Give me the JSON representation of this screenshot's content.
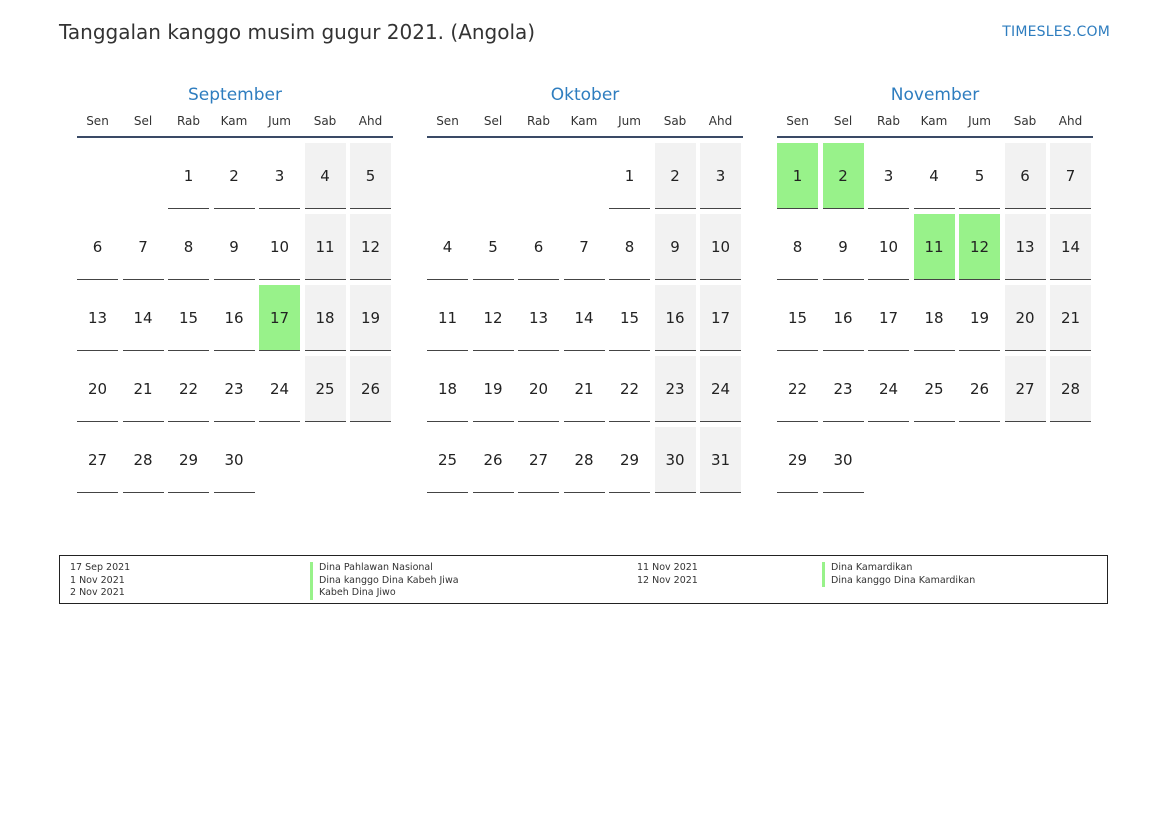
{
  "title": "Tanggalan kanggo musim gugur 2021. (Angola)",
  "site": "TIMESLES.COM",
  "holiday_color": "#98f28a",
  "weekend_color": "#f2f2f2",
  "accent_color": "#2e7dbf",
  "weekdays": [
    "Sen",
    "Sel",
    "Rab",
    "Kam",
    "Jum",
    "Sab",
    "Ahd"
  ],
  "months": [
    {
      "name": "September",
      "offset": 2,
      "days": 30,
      "holidays": [
        17
      ]
    },
    {
      "name": "Oktober",
      "offset": 4,
      "days": 31,
      "holidays": []
    },
    {
      "name": "November",
      "offset": 0,
      "days": 30,
      "holidays": [
        1,
        2,
        11,
        12
      ]
    }
  ],
  "legend": {
    "left": [
      {
        "date": "17 Sep 2021",
        "name": "Dina Pahlawan Nasional"
      },
      {
        "date": "1 Nov 2021",
        "name": "Dina kanggo Dina Kabeh Jiwa"
      },
      {
        "date": "2 Nov 2021",
        "name": "Kabeh Dina Jiwo"
      }
    ],
    "right": [
      {
        "date": "11 Nov 2021",
        "name": "Dina Kamardikan"
      },
      {
        "date": "12 Nov 2021",
        "name": "Dina kanggo Dina Kamardikan"
      }
    ]
  }
}
